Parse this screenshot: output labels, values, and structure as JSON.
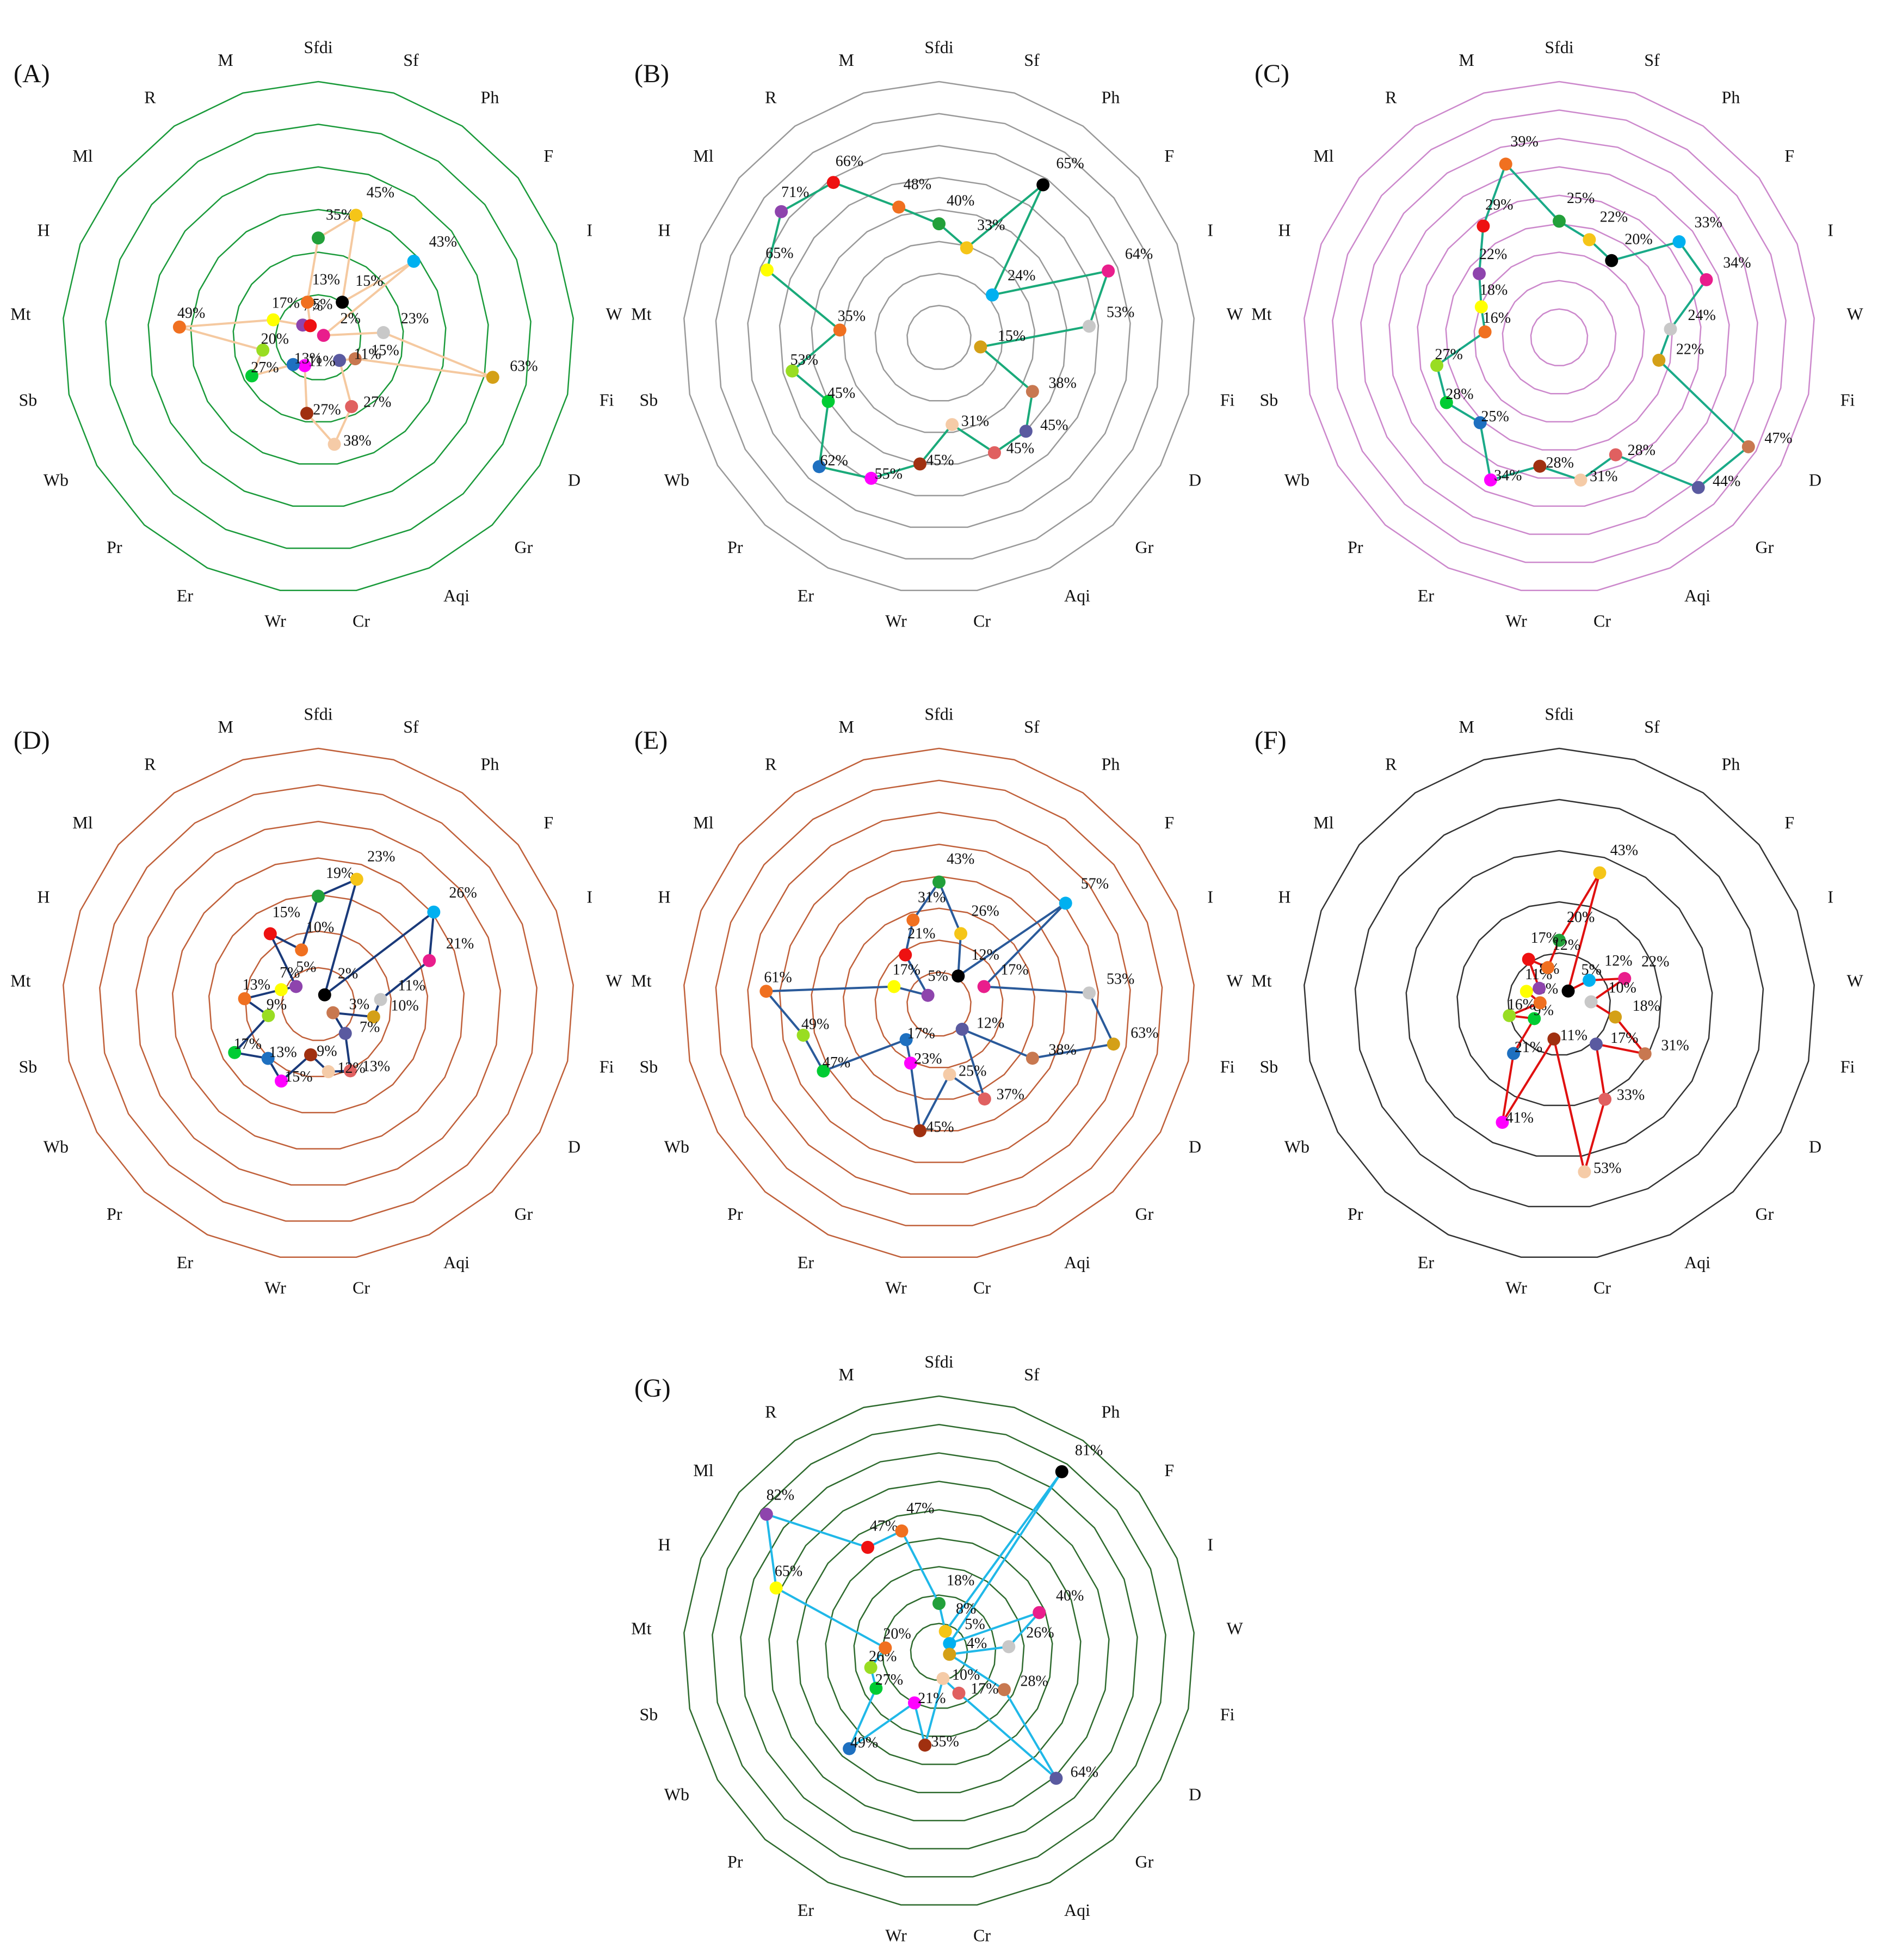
{
  "chart_data": [
    {
      "type": "radar",
      "title": "(A)",
      "categories": [
        "Sfdi",
        "Sf",
        "Ph",
        "F",
        "I",
        "W",
        "Fi",
        "D",
        "Gr",
        "Aqi",
        "Cr",
        "Wr",
        "Er",
        "Pr",
        "Wb",
        "Sb",
        "Mt",
        "H",
        "Ml",
        "R",
        "M"
      ],
      "values": [
        35,
        45,
        15,
        43,
        2,
        23,
        63,
        15,
        11,
        27,
        38,
        27,
        11,
        13,
        27,
        20,
        49,
        17,
        7,
        5,
        13
      ],
      "value_labels": [
        "35%",
        "45%",
        "15%",
        "43%",
        "2%",
        "23%",
        "63%",
        "15%",
        "11%",
        "27%",
        "38%",
        "27%",
        "11%",
        "13%",
        "27%",
        "20%",
        "49%",
        "17%",
        "7%",
        "5%",
        "13%"
      ],
      "colors": [
        "#22a03a",
        "#f5c518",
        "#000000",
        "#00b0f0",
        "#e91e8c",
        "#c8c8c8",
        "#d4a017",
        "#c87850",
        "#5a5aa0",
        "#e06060",
        "#f5cba7",
        "#a03010",
        "#ff00ff",
        "#1e70c0",
        "#00cc33",
        "#99dd22",
        "#f07020",
        "#ffff00",
        "#8e44ad",
        "#ee1111",
        "#f07020"
      ],
      "line_color": "#f5c9a0",
      "grid_color": "#1a9a3a",
      "rlim": [
        0,
        90
      ],
      "rings": 6
    },
    {
      "type": "radar",
      "title": "(B)",
      "categories": [
        "Sfdi",
        "Sf",
        "Ph",
        "F",
        "I",
        "W",
        "Fi",
        "D",
        "Gr",
        "Aqi",
        "Cr",
        "Wr",
        "Er",
        "Pr",
        "Wb",
        "Sb",
        "Mt",
        "H",
        "Ml",
        "R",
        "M"
      ],
      "values": [
        40,
        33,
        65,
        24,
        64,
        53,
        15,
        38,
        45,
        45,
        31,
        45,
        55,
        62,
        45,
        53,
        35,
        65,
        71,
        66,
        48
      ],
      "value_labels": [
        "40%",
        "33%",
        "65%",
        "24%",
        "64%",
        "53%",
        "15%",
        "38%",
        "45%",
        "45%",
        "31%",
        "45%",
        "55%",
        "62%",
        "45%",
        "53%",
        "35%",
        "65%",
        "71%",
        "66%",
        "48%"
      ],
      "colors": [
        "#22a03a",
        "#f5c518",
        "#000000",
        "#00b0f0",
        "#e91e8c",
        "#c8c8c8",
        "#d4a017",
        "#c87850",
        "#5a5aa0",
        "#e06060",
        "#f5cba7",
        "#a03010",
        "#ff00ff",
        "#1e70c0",
        "#00cc33",
        "#99dd22",
        "#f07020",
        "#ffff00",
        "#8e44ad",
        "#ee1111",
        "#f07020"
      ],
      "line_color": "#1aaa7a",
      "grid_color": "#999999",
      "rlim": [
        0,
        90
      ],
      "rings": 8
    },
    {
      "type": "radar",
      "title": "(C)",
      "categories": [
        "Sfdi",
        "Sf",
        "Ph",
        "F",
        "I",
        "W",
        "Fi",
        "D",
        "Gr",
        "Aqi",
        "Cr",
        "Wr",
        "Er",
        "Pr",
        "Wb",
        "Sb",
        "Mt",
        "H",
        "Ml",
        "R",
        "M"
      ],
      "values": [
        25,
        22,
        20,
        33,
        34,
        24,
        22,
        47,
        44,
        28,
        31,
        28,
        34,
        25,
        28,
        27,
        16,
        18,
        22,
        29,
        39
      ],
      "value_labels": [
        "25%",
        "22%",
        "20%",
        "33%",
        "34%",
        "24%",
        "22%",
        "47%",
        "44%",
        "28%",
        "31%",
        "28%",
        "34%",
        "25%",
        "28%",
        "27%",
        "16%",
        "18%",
        "22%",
        "29%",
        "39%"
      ],
      "colors": [
        "#22a03a",
        "#f5c518",
        "#000000",
        "#00b0f0",
        "#e91e8c",
        "#c8c8c8",
        "#d4a017",
        "#c87850",
        "#5a5aa0",
        "#e06060",
        "#f5cba7",
        "#a03010",
        "#ff00ff",
        "#1e70c0",
        "#00cc33",
        "#99dd22",
        "#f07020",
        "#ffff00",
        "#8e44ad",
        "#ee1111",
        "#f07020"
      ],
      "line_color": "#1aaa88",
      "grid_color": "#cc88cc",
      "rlim": [
        0,
        55
      ],
      "rings": 9
    },
    {
      "type": "radar",
      "title": "(D)",
      "categories": [
        "Sfdi",
        "Sf",
        "Ph",
        "F",
        "I",
        "W",
        "Fi",
        "D",
        "Gr",
        "Aqi",
        "Cr",
        "Wr",
        "Er",
        "Pr",
        "Wb",
        "Sb",
        "Mt",
        "H",
        "Ml",
        "R",
        "M"
      ],
      "values": [
        19,
        23,
        2,
        26,
        21,
        11,
        10,
        3,
        7,
        13,
        12,
        9,
        15,
        13,
        17,
        9,
        13,
        7,
        5,
        15,
        10
      ],
      "value_labels": [
        "19%",
        "23%",
        "2%",
        "26%",
        "21%",
        "11%",
        "10%",
        "3%",
        "7%",
        "13%",
        "12%",
        "9%",
        "15%",
        "13%",
        "17%",
        "9%",
        "13%",
        "7%",
        "5%",
        "15%",
        "10%"
      ],
      "colors": [
        "#22a03a",
        "#f5c518",
        "#000000",
        "#00b0f0",
        "#e91e8c",
        "#c8c8c8",
        "#d4a017",
        "#c87850",
        "#5a5aa0",
        "#e06060",
        "#f5cba7",
        "#a03010",
        "#ff00ff",
        "#1e70c0",
        "#00cc33",
        "#99dd22",
        "#f07020",
        "#ffff00",
        "#8e44ad",
        "#ee1111",
        "#f07020"
      ],
      "line_color": "#1a3a7a",
      "grid_color": "#c0603a",
      "rlim": [
        0,
        45
      ],
      "rings": 7
    },
    {
      "type": "radar",
      "title": "(E)",
      "categories": [
        "Sfdi",
        "Sf",
        "Ph",
        "F",
        "I",
        "W",
        "Fi",
        "D",
        "Gr",
        "Aqi",
        "Cr",
        "Wr",
        "Er",
        "Pr",
        "Wb",
        "Sb",
        "Mt",
        "H",
        "Ml",
        "R",
        "M"
      ],
      "values": [
        43,
        26,
        12,
        57,
        17,
        53,
        63,
        38,
        12,
        37,
        25,
        45,
        23,
        17,
        47,
        49,
        61,
        17,
        5,
        21,
        31
      ],
      "value_labels": [
        "43%",
        "26%",
        "12%",
        "57%",
        "17%",
        "53%",
        "63%",
        "38%",
        "12%",
        "37%",
        "25%",
        "45%",
        "23%",
        "17%",
        "47%",
        "49%",
        "61%",
        "17%",
        "5%",
        "21%",
        "31%"
      ],
      "colors": [
        "#22a03a",
        "#f5c518",
        "#000000",
        "#00b0f0",
        "#e91e8c",
        "#c8c8c8",
        "#d4a017",
        "#c87850",
        "#5a5aa0",
        "#e06060",
        "#f5cba7",
        "#a03010",
        "#ff00ff",
        "#1e70c0",
        "#00cc33",
        "#99dd22",
        "#f07020",
        "#ffff00",
        "#8e44ad",
        "#ee1111",
        "#f07020"
      ],
      "line_color": "#2a5a9a",
      "grid_color": "#c0603a",
      "rlim": [
        0,
        90
      ],
      "rings": 8
    },
    {
      "type": "radar",
      "title": "(F)",
      "categories": [
        "Sfdi",
        "Sf",
        "Ph",
        "F",
        "I",
        "W",
        "Fi",
        "D",
        "Gr",
        "Aqi",
        "Cr",
        "Wr",
        "Er",
        "Pr",
        "Wb",
        "Sb",
        "Mt",
        "H",
        "Ml",
        "R",
        "M"
      ],
      "values": [
        20,
        43,
        5,
        12,
        22,
        10,
        18,
        31,
        17,
        33,
        53,
        11,
        41,
        21,
        9,
        16,
        6,
        11,
        8,
        17,
        12
      ],
      "value_labels": [
        "20%",
        "43%",
        "5%",
        "12%",
        "22%",
        "10%",
        "18%",
        "31%",
        "17%",
        "33%",
        "53%",
        "11%",
        "41%",
        "21%",
        "9%",
        "16%",
        "6%",
        "11%",
        "8%",
        "17%",
        "12%"
      ],
      "colors": [
        "#22a03a",
        "#f5c518",
        "#000000",
        "#00b0f0",
        "#e91e8c",
        "#c8c8c8",
        "#d4a017",
        "#c87850",
        "#5a5aa0",
        "#e06060",
        "#f5cba7",
        "#a03010",
        "#ff00ff",
        "#1e70c0",
        "#00cc33",
        "#99dd22",
        "#f07020",
        "#ffff00",
        "#8e44ad",
        "#ee1111",
        "#f07020"
      ],
      "line_color": "#e01010",
      "grid_color": "#333333",
      "rlim": [
        0,
        80
      ],
      "rings": 5
    },
    {
      "type": "radar",
      "title": "(G)",
      "categories": [
        "Sfdi",
        "Sf",
        "Ph",
        "F",
        "I",
        "W",
        "Fi",
        "D",
        "Gr",
        "Aqi",
        "Cr",
        "Wr",
        "Er",
        "Pr",
        "Wb",
        "Sb",
        "Mt",
        "H",
        "Ml",
        "R",
        "M"
      ],
      "values": [
        18,
        8,
        81,
        5,
        40,
        26,
        4,
        28,
        64,
        17,
        10,
        35,
        21,
        49,
        27,
        26,
        20,
        65,
        82,
        47,
        47
      ],
      "value_labels": [
        "18%",
        "8%",
        "81%",
        "5%",
        "40%",
        "26%",
        "4%",
        "28%",
        "64%",
        "17%",
        "10%",
        "35%",
        "21%",
        "49%",
        "27%",
        "26%",
        "20%",
        "65%",
        "82%",
        "47%",
        "47%"
      ],
      "colors": [
        "#22a03a",
        "#f5c518",
        "#000000",
        "#00b0f0",
        "#e91e8c",
        "#c8c8c8",
        "#d4a017",
        "#c87850",
        "#5a5aa0",
        "#e06060",
        "#f5cba7",
        "#a03010",
        "#ff00ff",
        "#1e70c0",
        "#00cc33",
        "#99dd22",
        "#f07020",
        "#ffff00",
        "#8e44ad",
        "#ee1111",
        "#f07020"
      ],
      "line_color": "#20b8e8",
      "grid_color": "#2e6b2e",
      "rlim": [
        0,
        95
      ],
      "rings": 9
    }
  ]
}
